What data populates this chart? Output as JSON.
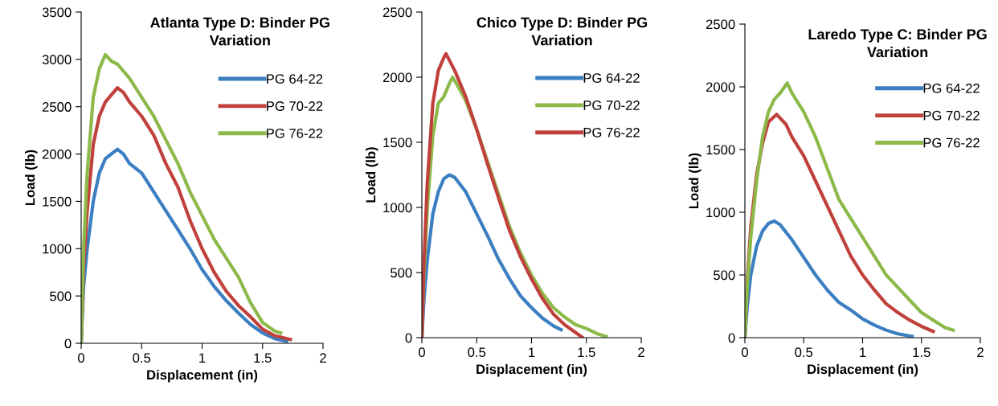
{
  "chart_data": [
    {
      "type": "line",
      "title": "Atlanta Type D: Binder PG Variation",
      "xlabel": "Displacement (in)",
      "ylabel": "Load (lb)",
      "xlim": [
        0,
        2
      ],
      "xticks": [
        0,
        0.5,
        1,
        1.5,
        2
      ],
      "ylim": [
        0,
        3500
      ],
      "yticks": [
        0,
        500,
        1000,
        1500,
        2000,
        2500,
        3000,
        3500
      ],
      "grid": false,
      "legend": "top right",
      "marker": "none",
      "line_style": "solid",
      "series": [
        {
          "name": "PG 64-22",
          "color": "#3b7ec1",
          "x": [
            0,
            0.02,
            0.05,
            0.1,
            0.15,
            0.2,
            0.3,
            0.35,
            0.4,
            0.5,
            0.6,
            0.7,
            0.8,
            0.9,
            1.0,
            1.1,
            1.2,
            1.3,
            1.4,
            1.5,
            1.6,
            1.7
          ],
          "values": [
            0,
            600,
            1000,
            1500,
            1800,
            1950,
            2050,
            2000,
            1900,
            1800,
            1600,
            1400,
            1200,
            1000,
            780,
            600,
            450,
            320,
            200,
            110,
            50,
            20
          ]
        },
        {
          "name": "PG 70-22",
          "color": "#c0403c",
          "x": [
            0,
            0.02,
            0.05,
            0.1,
            0.15,
            0.2,
            0.3,
            0.35,
            0.4,
            0.5,
            0.6,
            0.7,
            0.8,
            0.9,
            1.0,
            1.1,
            1.2,
            1.3,
            1.4,
            1.5,
            1.6,
            1.73
          ],
          "values": [
            0,
            800,
            1400,
            2100,
            2400,
            2550,
            2700,
            2650,
            2550,
            2400,
            2200,
            1900,
            1650,
            1300,
            1000,
            750,
            550,
            400,
            280,
            150,
            80,
            40
          ]
        },
        {
          "name": "PG 76-22",
          "color": "#8db94a",
          "x": [
            0,
            0.02,
            0.05,
            0.1,
            0.15,
            0.2,
            0.25,
            0.3,
            0.4,
            0.5,
            0.6,
            0.7,
            0.8,
            0.9,
            1.0,
            1.1,
            1.2,
            1.3,
            1.4,
            1.5,
            1.6,
            1.65
          ],
          "values": [
            0,
            1000,
            1800,
            2600,
            2900,
            3050,
            2980,
            2950,
            2800,
            2600,
            2400,
            2150,
            1900,
            1600,
            1350,
            1100,
            900,
            700,
            430,
            220,
            130,
            110
          ]
        }
      ]
    },
    {
      "type": "line",
      "title": "Chico Type D: Binder PG Variation",
      "xlabel": "Displacement (in)",
      "ylabel": "Load (lb)",
      "xlim": [
        0,
        2
      ],
      "xticks": [
        0,
        0.5,
        1,
        1.5,
        2
      ],
      "ylim": [
        0,
        2500
      ],
      "yticks": [
        0,
        500,
        1000,
        1500,
        2000,
        2500
      ],
      "grid": false,
      "legend": "top right",
      "marker": "none",
      "line_style": "solid",
      "series": [
        {
          "name": "PG 64-22",
          "color": "#3b7ec1",
          "x": [
            0,
            0.02,
            0.05,
            0.1,
            0.15,
            0.2,
            0.25,
            0.3,
            0.4,
            0.5,
            0.6,
            0.7,
            0.8,
            0.9,
            1.0,
            1.1,
            1.2,
            1.27
          ],
          "values": [
            0,
            300,
            600,
            950,
            1120,
            1220,
            1250,
            1230,
            1120,
            950,
            780,
            600,
            450,
            320,
            230,
            150,
            90,
            60
          ]
        },
        {
          "name": "PG 70-22",
          "color": "#8db94a",
          "x": [
            0,
            0.02,
            0.05,
            0.1,
            0.15,
            0.2,
            0.25,
            0.28,
            0.35,
            0.4,
            0.5,
            0.6,
            0.7,
            0.8,
            0.9,
            1.0,
            1.1,
            1.2,
            1.3,
            1.4,
            1.5,
            1.6,
            1.68
          ],
          "values": [
            0,
            500,
            1000,
            1550,
            1800,
            1850,
            1950,
            2000,
            1900,
            1820,
            1600,
            1350,
            1100,
            850,
            650,
            480,
            340,
            230,
            160,
            100,
            70,
            30,
            10
          ]
        },
        {
          "name": "PG 76-22",
          "color": "#c0403c",
          "x": [
            0,
            0.02,
            0.05,
            0.1,
            0.15,
            0.2,
            0.22,
            0.3,
            0.4,
            0.5,
            0.6,
            0.7,
            0.8,
            0.9,
            1.0,
            1.1,
            1.2,
            1.3,
            1.4,
            1.46
          ],
          "values": [
            0,
            600,
            1200,
            1800,
            2050,
            2150,
            2180,
            2050,
            1850,
            1600,
            1330,
            1070,
            820,
            620,
            450,
            300,
            180,
            100,
            40,
            5
          ]
        }
      ]
    },
    {
      "type": "line",
      "title": "Laredo Type C: Binder PG Variation",
      "xlabel": "Displacement (in)",
      "ylabel": "Load (lb)",
      "xlim": [
        0,
        2
      ],
      "xticks": [
        0,
        0.5,
        1,
        1.5,
        2
      ],
      "ylim": [
        0,
        2500
      ],
      "yticks": [
        0,
        500,
        1000,
        1500,
        2000,
        2500
      ],
      "grid": false,
      "legend": "top right",
      "marker": "none",
      "line_style": "solid",
      "series": [
        {
          "name": "PG 64-22",
          "color": "#3b7ec1",
          "x": [
            0,
            0.02,
            0.05,
            0.1,
            0.15,
            0.2,
            0.25,
            0.3,
            0.4,
            0.5,
            0.6,
            0.7,
            0.8,
            0.9,
            1.0,
            1.1,
            1.2,
            1.3,
            1.42
          ],
          "values": [
            0,
            250,
            500,
            730,
            850,
            910,
            930,
            900,
            780,
            640,
            500,
            380,
            280,
            220,
            150,
            100,
            60,
            30,
            10
          ]
        },
        {
          "name": "PG 70-22",
          "color": "#c0403c",
          "x": [
            0,
            0.02,
            0.05,
            0.1,
            0.15,
            0.2,
            0.27,
            0.35,
            0.4,
            0.5,
            0.6,
            0.7,
            0.8,
            0.9,
            1.0,
            1.1,
            1.2,
            1.3,
            1.4,
            1.5,
            1.6
          ],
          "values": [
            0,
            450,
            880,
            1300,
            1550,
            1720,
            1780,
            1700,
            1600,
            1450,
            1250,
            1050,
            850,
            650,
            500,
            380,
            270,
            200,
            140,
            90,
            50
          ]
        },
        {
          "name": "PG 76-22",
          "color": "#8db94a",
          "x": [
            0,
            0.02,
            0.05,
            0.1,
            0.15,
            0.2,
            0.25,
            0.3,
            0.36,
            0.4,
            0.5,
            0.6,
            0.7,
            0.8,
            0.9,
            1.0,
            1.1,
            1.2,
            1.3,
            1.4,
            1.5,
            1.6,
            1.7,
            1.77
          ],
          "values": [
            0,
            400,
            800,
            1250,
            1600,
            1800,
            1900,
            1950,
            2030,
            1950,
            1800,
            1600,
            1350,
            1100,
            950,
            800,
            650,
            500,
            400,
            300,
            200,
            140,
            80,
            60
          ]
        }
      ]
    }
  ]
}
